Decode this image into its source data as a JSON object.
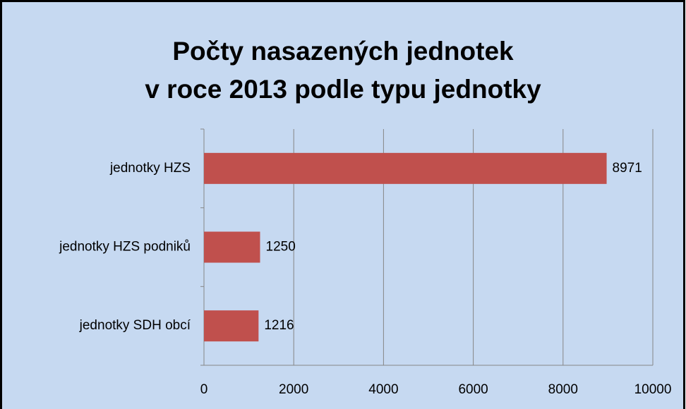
{
  "chart_data": {
    "type": "hbar",
    "title": [
      "Počty nasazených jednotek",
      "v roce 2013 podle typu jednotky"
    ],
    "categories": [
      "jednotky HZS",
      "jednotky HZS podniků",
      "jednotky SDH obcí"
    ],
    "values": [
      8971,
      1250,
      1216
    ],
    "color": "#c0504d",
    "xlim": [
      0,
      10000
    ],
    "xticks": [
      0,
      2000,
      4000,
      6000,
      8000,
      10000
    ],
    "grid": true
  }
}
